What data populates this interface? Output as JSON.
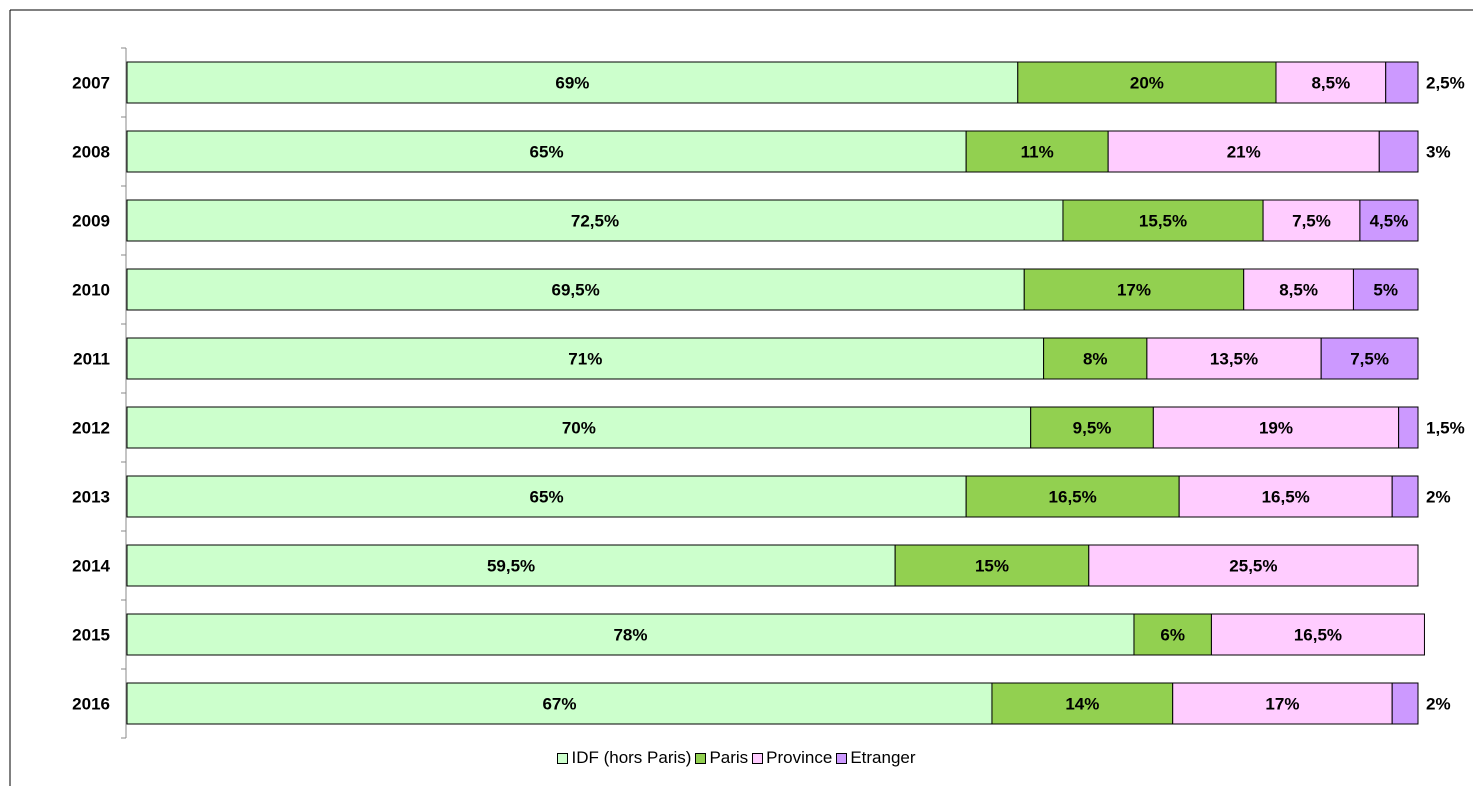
{
  "chart_data": {
    "type": "bar",
    "orientation": "horizontal",
    "stacked": true,
    "categories": [
      "2007",
      "2008",
      "2009",
      "2010",
      "2011",
      "2012",
      "2013",
      "2014",
      "2015",
      "2016"
    ],
    "series": [
      {
        "name": "IDF (hors Paris)",
        "color": "#ccffcc",
        "values": [
          69,
          65,
          72.5,
          69.5,
          71,
          70,
          65,
          59.5,
          78,
          67
        ],
        "labels": [
          "69%",
          "65%",
          "72,5%",
          "69,5%",
          "71%",
          "70%",
          "65%",
          "59,5%",
          "78%",
          "67%"
        ]
      },
      {
        "name": "Paris",
        "color": "#92d050",
        "values": [
          20,
          11,
          15.5,
          17,
          8,
          9.5,
          16.5,
          15,
          6,
          14
        ],
        "labels": [
          "20%",
          "11%",
          "15,5%",
          "17%",
          "8%",
          "9,5%",
          "16,5%",
          "15%",
          "6%",
          "14%"
        ]
      },
      {
        "name": "Province",
        "color": "#ffccff",
        "values": [
          8.5,
          21,
          7.5,
          8.5,
          13.5,
          19,
          16.5,
          25.5,
          16.5,
          17
        ],
        "labels": [
          "8,5%",
          "21%",
          "7,5%",
          "8,5%",
          "13,5%",
          "19%",
          "16,5%",
          "25,5%",
          "16,5%",
          "17%"
        ]
      },
      {
        "name": "Etranger",
        "color": "#cc99ff",
        "values": [
          2.5,
          3,
          4.5,
          5,
          7.5,
          1.5,
          2,
          0,
          0,
          2
        ],
        "labels": [
          "2,5%",
          "3%",
          "4,5%",
          "5%",
          "7,5%",
          "1,5%",
          "2%",
          "",
          "",
          "2%"
        ]
      }
    ],
    "xlim": [
      0,
      100
    ],
    "grid": false,
    "legend_position": "bottom"
  }
}
